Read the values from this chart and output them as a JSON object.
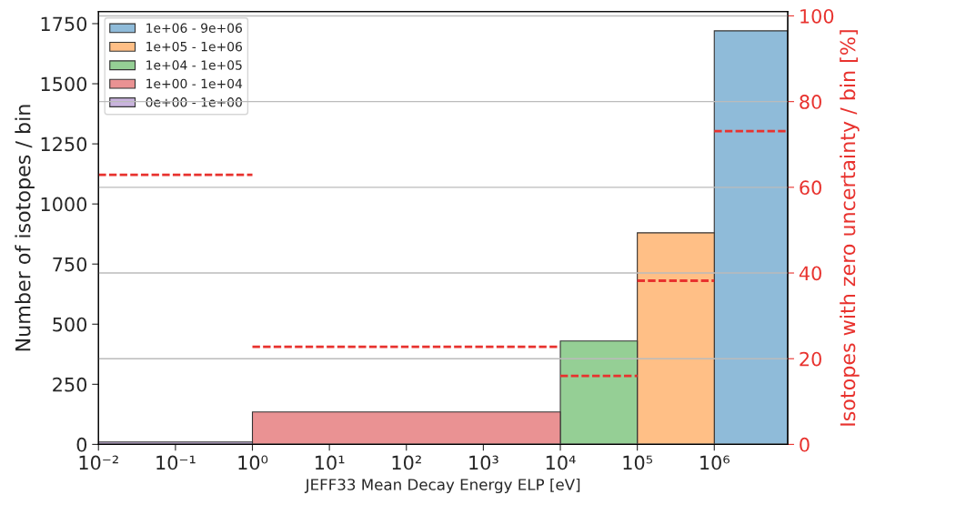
{
  "chart_data": {
    "type": "histogram",
    "xlabel": "JEFF33 Mean Decay Energy ELP [eV]",
    "ylabel": "Number of isotopes / bin",
    "y2label": "Isotopes with zero uncertainty / bin [%]",
    "log": "x",
    "xlim": [
      0.01,
      9000000
    ],
    "xticks": [
      {
        "value": 0.01,
        "label": "10⁻²"
      },
      {
        "value": 0.1,
        "label": "10⁻¹"
      },
      {
        "value": 1,
        "label": "10⁰"
      },
      {
        "value": 10,
        "label": "10¹"
      },
      {
        "value": 100,
        "label": "10²"
      },
      {
        "value": 1000,
        "label": "10³"
      },
      {
        "value": 10000,
        "label": "10⁴"
      },
      {
        "value": 100000,
        "label": "10⁵"
      },
      {
        "value": 1000000,
        "label": "10⁶"
      }
    ],
    "ylim": [
      0,
      1800
    ],
    "yticks": [
      0,
      250,
      500,
      750,
      1000,
      1250,
      1500,
      1750
    ],
    "y2lim": [
      0,
      101
    ],
    "y2ticks": [
      0,
      20,
      40,
      60,
      80,
      100
    ],
    "grid": "y",
    "legend": "top left",
    "series": [
      {
        "name": "1e+06 - 9e+06",
        "color": "#8fbbd9",
        "bins": [
          1000000,
          9000000
        ],
        "values": [
          1720
        ]
      },
      {
        "name": "1e+05 - 1e+06",
        "color": "#ffbf86",
        "bins": [
          100000,
          1000000
        ],
        "values": [
          880
        ]
      },
      {
        "name": "1e+04 - 1e+05",
        "color": "#95cf95",
        "bins": [
          10000,
          100000
        ],
        "values": [
          430
        ]
      },
      {
        "name": "1e+00 - 1e+04",
        "color": "#ea9293",
        "bins": [
          1,
          10000
        ],
        "values": [
          135
        ]
      },
      {
        "name": "0e+00 - 1e+00",
        "color": "#c9b3de",
        "bins": [
          0,
          1
        ],
        "values": [
          10
        ]
      },
      {
        "type": "line",
        "axis": "y2",
        "color": "#e8322e",
        "line_style": "dashed",
        "x": [
          1000000,
          9000000
        ],
        "values": [
          73.1,
          73.1
        ]
      },
      {
        "type": "line",
        "axis": "y2",
        "color": "#e8322e",
        "line_style": "dashed",
        "x": [
          100000,
          1000000
        ],
        "values": [
          38.2,
          38.2
        ]
      },
      {
        "type": "line",
        "axis": "y2",
        "color": "#e8322e",
        "line_style": "dashed",
        "x": [
          10000,
          100000
        ],
        "values": [
          16,
          16
        ]
      },
      {
        "type": "line",
        "axis": "y2",
        "color": "#e8322e",
        "line_style": "dashed",
        "x": [
          1,
          10000
        ],
        "values": [
          22.8,
          22.8
        ]
      },
      {
        "type": "line",
        "axis": "y2",
        "color": "#e8322e",
        "line_style": "dashed",
        "x": [
          0.01,
          1
        ],
        "values": [
          62.9,
          62.9
        ]
      }
    ]
  }
}
